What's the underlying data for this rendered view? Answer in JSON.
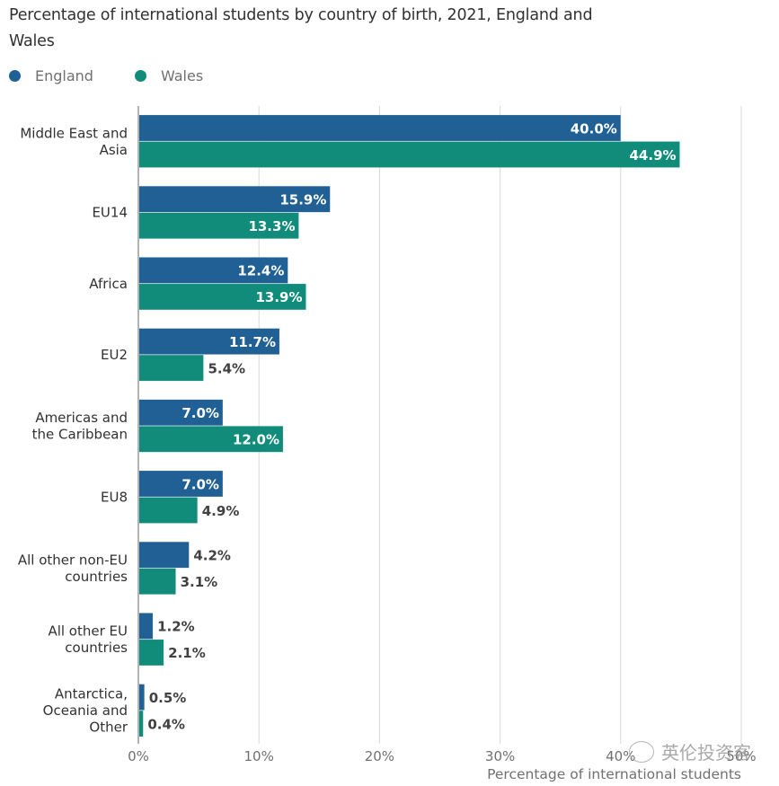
{
  "chart_data": {
    "type": "bar",
    "orientation": "horizontal",
    "title": "Percentage of international students by country of birth, 2021, England and Wales",
    "xlabel": "Percentage of international students",
    "ylabel": "",
    "xlim": [
      0,
      50
    ],
    "x_ticks": [
      "0%",
      "10%",
      "20%",
      "30%",
      "40%",
      "50%"
    ],
    "x_tick_values": [
      0,
      10,
      20,
      30,
      40,
      50
    ],
    "grid": true,
    "legend_position": "top-left",
    "categories": [
      [
        "Middle East and",
        "Asia"
      ],
      [
        "EU14"
      ],
      [
        "Africa"
      ],
      [
        "EU2"
      ],
      [
        "Americas and",
        "the Caribbean"
      ],
      [
        "EU8"
      ],
      [
        "All other non-EU",
        "countries"
      ],
      [
        "All other EU",
        "countries"
      ],
      [
        "Antarctica,",
        "Oceania and",
        "Other"
      ]
    ],
    "series": [
      {
        "name": "England",
        "color": "#206095",
        "values": [
          40.0,
          15.9,
          12.4,
          11.7,
          7.0,
          7.0,
          4.2,
          1.2,
          0.5
        ],
        "labels": [
          "40.0%",
          "15.9%",
          "12.4%",
          "11.7%",
          "7.0%",
          "7.0%",
          "4.2%",
          "1.2%",
          "0.5%"
        ]
      },
      {
        "name": "Wales",
        "color": "#118c7b",
        "values": [
          44.9,
          13.3,
          13.9,
          5.4,
          12.0,
          4.9,
          3.1,
          2.1,
          0.4
        ],
        "labels": [
          "44.9%",
          "13.3%",
          "13.9%",
          "5.4%",
          "12.0%",
          "4.9%",
          "3.1%",
          "2.1%",
          "0.4%"
        ]
      }
    ]
  },
  "legend": [
    {
      "name": "England",
      "color": "#206095"
    },
    {
      "name": "Wales",
      "color": "#118c7b"
    }
  ],
  "watermark": {
    "text": "英伦投资客",
    "icon": "wechat-icon"
  }
}
